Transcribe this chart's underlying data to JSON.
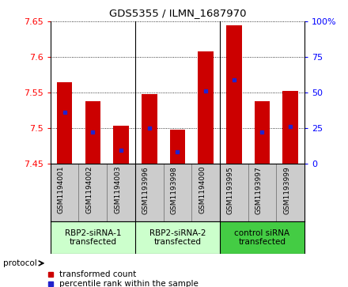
{
  "title": "GDS5355 / ILMN_1687970",
  "samples": [
    "GSM1194001",
    "GSM1194002",
    "GSM1194003",
    "GSM1193996",
    "GSM1193998",
    "GSM1194000",
    "GSM1193995",
    "GSM1193997",
    "GSM1193999"
  ],
  "bar_top": [
    7.565,
    7.538,
    7.503,
    7.548,
    7.498,
    7.608,
    7.645,
    7.538,
    7.552
  ],
  "bar_bottom": [
    7.45,
    7.45,
    7.45,
    7.45,
    7.45,
    7.45,
    7.45,
    7.45,
    7.45
  ],
  "blue_y": [
    7.522,
    7.494,
    7.469,
    7.5,
    7.467,
    7.552,
    7.568,
    7.494,
    7.502
  ],
  "ylim": [
    7.45,
    7.65
  ],
  "yticks": [
    7.45,
    7.5,
    7.55,
    7.6,
    7.65
  ],
  "ytick_labels": [
    "7.45",
    "7.5",
    "7.55",
    "7.6",
    "7.65"
  ],
  "right_yticks": [
    0,
    25,
    50,
    75,
    100
  ],
  "right_ytick_labels": [
    "0",
    "25",
    "50",
    "75",
    "100%"
  ],
  "right_ylim": [
    0,
    100
  ],
  "bar_color": "#cc0000",
  "blue_color": "#2222cc",
  "group_boundaries": [
    0,
    3,
    6,
    9
  ],
  "group_labels": [
    "RBP2-siRNA-1\ntransfected",
    "RBP2-siRNA-2\ntransfected",
    "control siRNA\ntransfected"
  ],
  "group_colors": [
    "#ccffcc",
    "#ccffcc",
    "#44cc44"
  ],
  "names_bg": "#cccccc",
  "protocol_label": "protocol",
  "legend_red_label": "transformed count",
  "legend_blue_label": "percentile rank within the sample",
  "figsize": [
    4.4,
    3.63
  ],
  "dpi": 100
}
